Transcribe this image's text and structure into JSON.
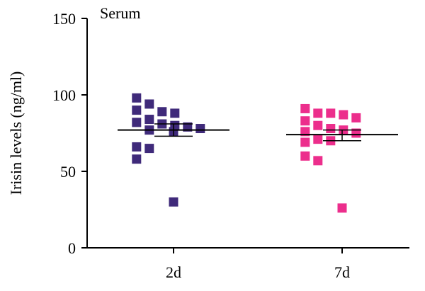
{
  "chart_data": {
    "type": "scatter",
    "title": "Serum",
    "ylabel": "Irisin levels (ng/ml)",
    "xlabel": "",
    "ylim": [
      0,
      150
    ],
    "yticks": [
      0,
      50,
      100,
      150
    ],
    "categories": [
      "2d",
      "7d"
    ],
    "grid": false,
    "series": [
      {
        "category": "2d",
        "color": "#3f2a7a",
        "marker": "square",
        "mean": 77,
        "sem": [
          73,
          81
        ],
        "values": [
          98,
          94,
          90,
          89,
          88,
          84,
          82,
          81,
          80,
          79,
          78,
          77,
          76,
          66,
          65,
          58,
          30
        ]
      },
      {
        "category": "7d",
        "color": "#ec2e8c",
        "marker": "square",
        "mean": 74,
        "sem": [
          70,
          77
        ],
        "values": [
          91,
          88,
          88,
          87,
          85,
          83,
          80,
          78,
          77,
          76,
          75,
          71,
          70,
          69,
          60,
          57,
          26
        ]
      }
    ]
  }
}
